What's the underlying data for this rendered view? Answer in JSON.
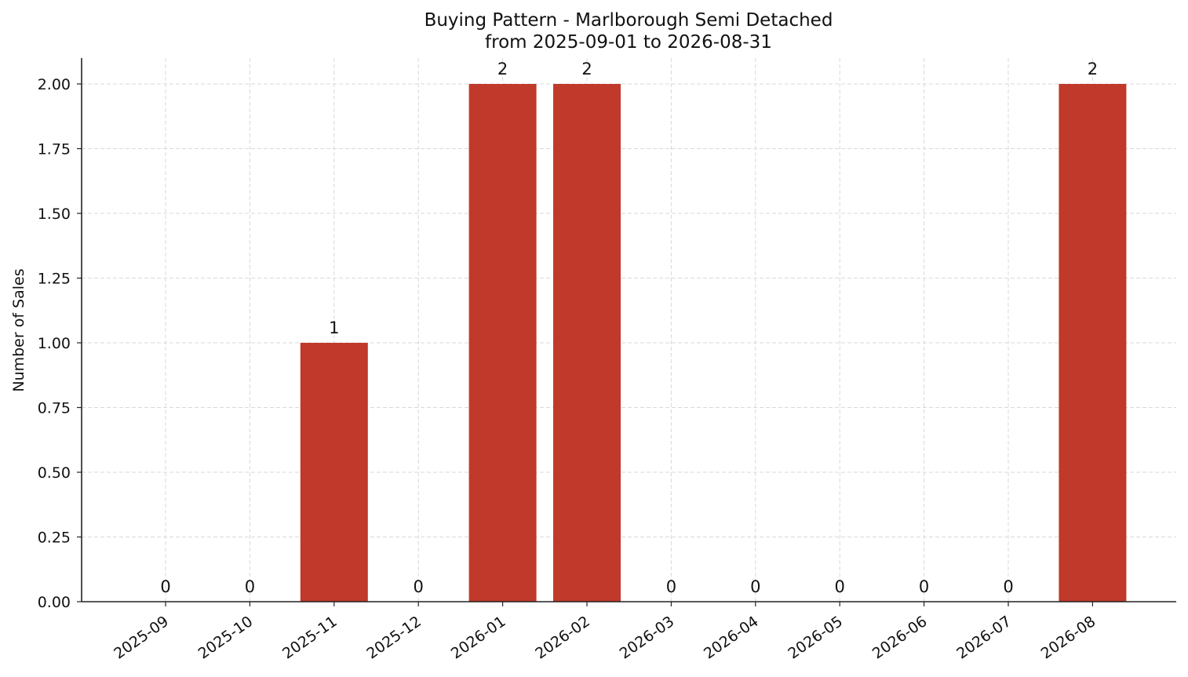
{
  "chart_data": {
    "type": "bar",
    "title": "Buying Pattern - Marlborough Semi Detached",
    "subtitle": "from 2025-09-01 to 2026-08-31",
    "xlabel": "",
    "ylabel": "Number of Sales",
    "categories": [
      "2025-09",
      "2025-10",
      "2025-11",
      "2025-12",
      "2026-01",
      "2026-02",
      "2026-03",
      "2026-04",
      "2026-05",
      "2026-06",
      "2026-07",
      "2026-08"
    ],
    "values": [
      0,
      0,
      1,
      0,
      2,
      2,
      0,
      0,
      0,
      0,
      0,
      2
    ],
    "data_labels": [
      "0",
      "0",
      "1",
      "0",
      "2",
      "2",
      "0",
      "0",
      "0",
      "0",
      "0",
      "2"
    ],
    "ylim": [
      0,
      2.1
    ],
    "yticks": [
      0,
      0.25,
      0.5,
      0.75,
      1.0,
      1.25,
      1.5,
      1.75,
      2.0
    ],
    "ytick_labels": [
      "0.00",
      "0.25",
      "0.50",
      "0.75",
      "1.00",
      "1.25",
      "1.50",
      "1.75",
      "2.00"
    ],
    "grid": true,
    "bar_color": "#c0392b",
    "grid_color": "#d9d9d9",
    "axis_color": "#222222"
  }
}
